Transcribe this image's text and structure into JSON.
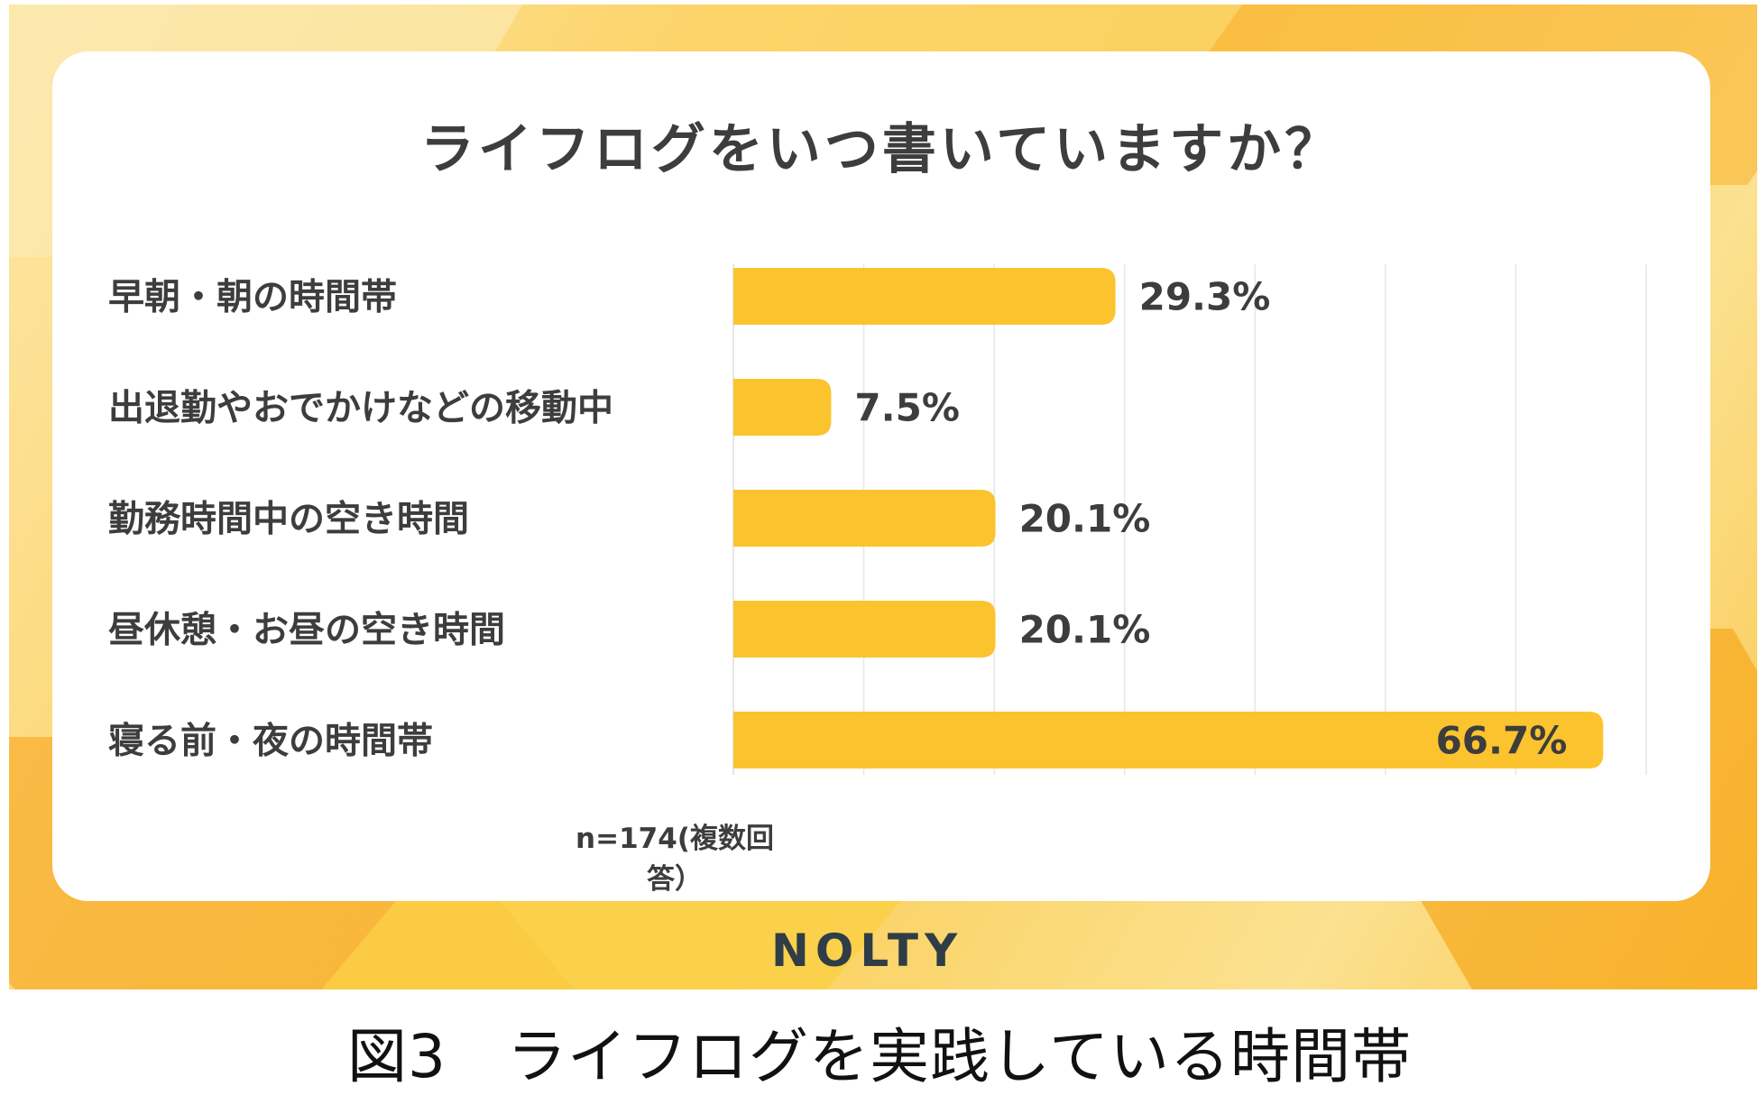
{
  "colors": {
    "bar": "#fbc42e",
    "grid": "#e6e6e6",
    "label": "#3d3d3d"
  },
  "brand": "NOLTY",
  "sample_note": "n=174(複数回答）",
  "figure_caption": "図3　ライフログを実践している時間帯",
  "chart_data": {
    "type": "bar",
    "orientation": "horizontal",
    "title": "ライフログをいつ書いていますか？",
    "categories": [
      "早朝・朝の時間帯",
      "出退勤やおでかけなどの移動中",
      "勤務時間中の空き時間",
      "昼休憩・お昼の空き時間",
      "寝る前・夜の時間帯"
    ],
    "values": [
      29.3,
      7.5,
      20.1,
      20.1,
      66.7
    ],
    "value_labels": [
      "29.3%",
      "7.5%",
      "20.1%",
      "20.1%",
      "66.7%"
    ],
    "xlim": [
      0,
      70
    ],
    "grid": true,
    "gridline_step": 10
  }
}
